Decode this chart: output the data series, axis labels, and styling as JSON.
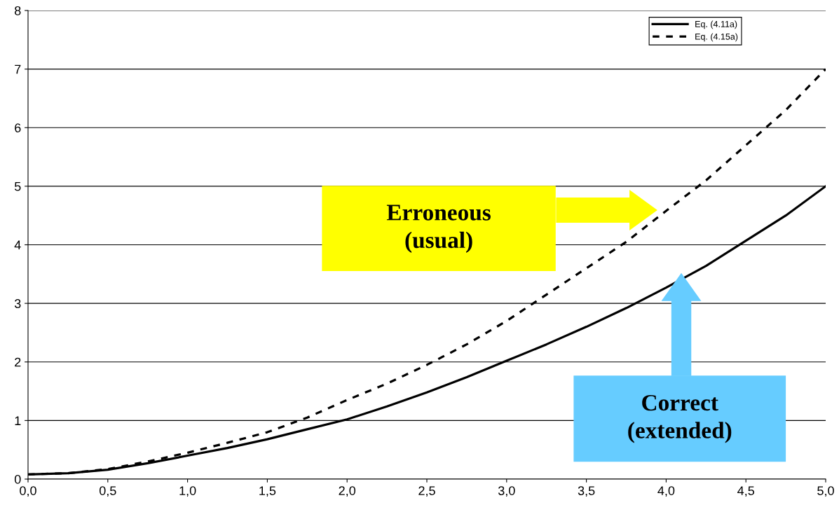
{
  "chart_data": {
    "type": "line",
    "x": [
      0,
      0.25,
      0.5,
      0.75,
      1.0,
      1.25,
      1.5,
      1.75,
      2.0,
      2.25,
      2.5,
      2.75,
      3.0,
      3.25,
      3.5,
      3.75,
      4.0,
      4.25,
      4.5,
      4.75,
      5.0
    ],
    "series": [
      {
        "name": "Eq. (4.11a)",
        "color": "#000000",
        "line_style": "solid",
        "values": [
          0.08,
          0.1,
          0.16,
          0.27,
          0.4,
          0.53,
          0.68,
          0.85,
          1.02,
          1.24,
          1.48,
          1.74,
          2.02,
          2.3,
          2.6,
          2.92,
          3.27,
          3.64,
          4.07,
          4.5,
          5.0
        ]
      },
      {
        "name": "Eq. (4.15a)",
        "color": "#000000",
        "line_style": "dashed",
        "values": [
          0.08,
          0.1,
          0.17,
          0.3,
          0.45,
          0.62,
          0.8,
          1.05,
          1.35,
          1.63,
          1.95,
          2.3,
          2.7,
          3.15,
          3.6,
          4.05,
          4.58,
          5.1,
          5.7,
          6.3,
          7.0
        ]
      }
    ],
    "xlim": [
      0,
      5
    ],
    "ylim": [
      0,
      8
    ],
    "xticks": [
      {
        "value": 0,
        "label": "0,0"
      },
      {
        "value": 0.5,
        "label": "0,5"
      },
      {
        "value": 1,
        "label": "1,0"
      },
      {
        "value": 1.5,
        "label": "1,5"
      },
      {
        "value": 2,
        "label": "2,0"
      },
      {
        "value": 2.5,
        "label": "2,5"
      },
      {
        "value": 3,
        "label": "3,0"
      },
      {
        "value": 3.5,
        "label": "3,5"
      },
      {
        "value": 4,
        "label": "4,0"
      },
      {
        "value": 4.5,
        "label": "4,5"
      },
      {
        "value": 5,
        "label": "5,0"
      }
    ],
    "yticks": [
      0,
      1,
      2,
      3,
      4,
      5,
      6,
      7,
      8
    ],
    "grid": "y",
    "legend": "top right",
    "marker": "none",
    "annotations": [
      "Erroneous\n(usual)",
      "Correct\n(extended)"
    ]
  }
}
